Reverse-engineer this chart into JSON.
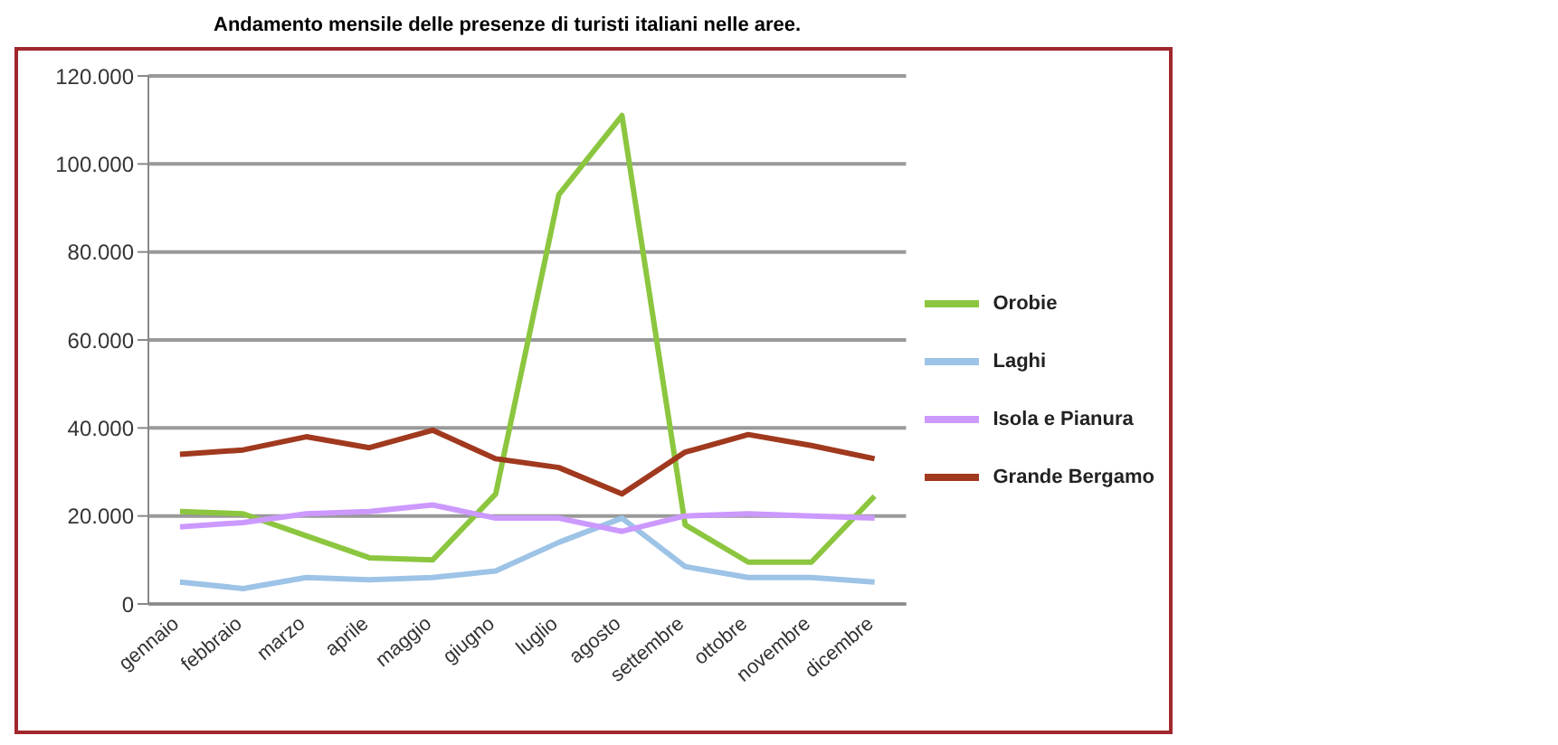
{
  "chart_data": {
    "type": "line",
    "title": "Andamento mensile delle presenze di turisti italiani nelle aree.",
    "categories": [
      "gennaio",
      "febbraio",
      "marzo",
      "aprile",
      "maggio",
      "giugno",
      "luglio",
      "agosto",
      "settembre",
      "ottobre",
      "novembre",
      "dicembre"
    ],
    "series": [
      {
        "name": "Orobie",
        "color": "#8cc63f",
        "values": [
          21000,
          20500,
          15500,
          10500,
          10000,
          25000,
          93000,
          111000,
          18000,
          9500,
          9500,
          24500
        ]
      },
      {
        "name": "Laghi",
        "color": "#9dc3e6",
        "values": [
          5000,
          3500,
          6000,
          5500,
          6000,
          7500,
          14000,
          19500,
          8500,
          6000,
          6000,
          5000
        ]
      },
      {
        "name": "Isola e Pianura",
        "color": "#cc99ff",
        "values": [
          17500,
          18500,
          20500,
          21000,
          22500,
          19500,
          19500,
          16500,
          20000,
          20500,
          20000,
          19500
        ]
      },
      {
        "name": "Grande Bergamo",
        "color": "#a0391e",
        "values": [
          34000,
          35000,
          38000,
          35500,
          39500,
          33000,
          31000,
          25000,
          34500,
          38500,
          36000,
          33000
        ]
      }
    ],
    "ylim": [
      0,
      120000
    ],
    "yticks": [
      {
        "value": 0,
        "label": "0"
      },
      {
        "value": 20000,
        "label": "20.000"
      },
      {
        "value": 40000,
        "label": "40.000"
      },
      {
        "value": 60000,
        "label": "60.000"
      },
      {
        "value": 80000,
        "label": "80.000"
      },
      {
        "value": 100000,
        "label": "100.000"
      },
      {
        "value": 120000,
        "label": "120.000"
      }
    ],
    "grid": "y",
    "legend": "right",
    "marker": "none",
    "line_style": "solid"
  }
}
